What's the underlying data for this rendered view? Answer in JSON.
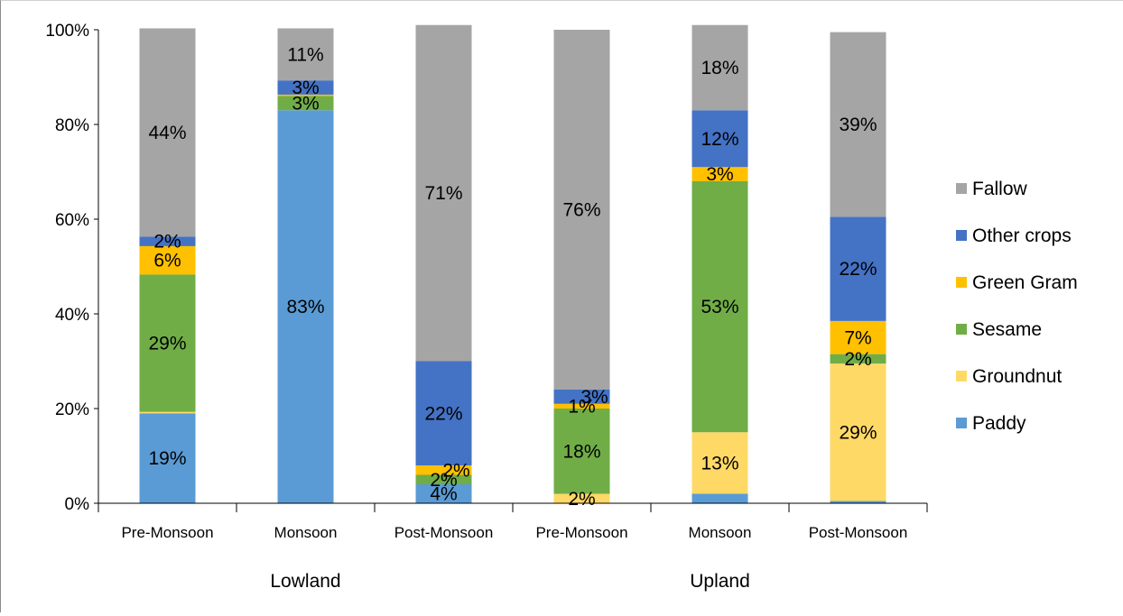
{
  "chart_data": {
    "type": "bar",
    "stacked": true,
    "percent": true,
    "categories": [
      "Pre-Monsoon",
      "Monsoon",
      "Post-Monsoon",
      "Pre-Monsoon",
      "Monsoon",
      "Post-Monsoon"
    ],
    "groups": [
      {
        "label": "Lowland",
        "categories": [
          0,
          1,
          2
        ]
      },
      {
        "label": "Upland",
        "categories": [
          3,
          4,
          5
        ]
      }
    ],
    "y_ticks": [
      "0%",
      "20%",
      "40%",
      "60%",
      "80%",
      "100%"
    ],
    "ylim": [
      0,
      100
    ],
    "legend_position": "right",
    "series": [
      {
        "name": "Paddy",
        "color": "#5b9bd5",
        "values": [
          19,
          83,
          4,
          0,
          2,
          0.5
        ],
        "labels": [
          "19%",
          "83%",
          "4%",
          "",
          "",
          ""
        ]
      },
      {
        "name": "Groundnut",
        "color": "#ffd966",
        "values": [
          0.3,
          0,
          0,
          2,
          13,
          29
        ],
        "labels": [
          "",
          "",
          "",
          "2%",
          "13%",
          "29%"
        ]
      },
      {
        "name": "Sesame",
        "color": "#70ad47",
        "values": [
          29,
          3,
          2,
          18,
          53,
          2
        ],
        "labels": [
          "29%",
          "3%",
          "2%",
          "18%",
          "53%",
          "2%"
        ]
      },
      {
        "name": "Green Gram",
        "color": "#ffc000",
        "values": [
          6,
          0.3,
          2,
          1,
          3,
          7
        ],
        "labels": [
          "6%",
          "",
          "2%",
          "1%",
          "3%",
          "7%"
        ]
      },
      {
        "name": "Other crops",
        "color": "#4472c4",
        "values": [
          2,
          3,
          22,
          3,
          12,
          22
        ],
        "labels": [
          "2%",
          "3%",
          "22%",
          "3%",
          "12%",
          "22%"
        ]
      },
      {
        "name": "Fallow",
        "color": "#a5a5a5",
        "values": [
          44,
          11,
          71,
          76,
          18,
          39
        ],
        "labels": [
          "44%",
          "11%",
          "71%",
          "76%",
          "18%",
          "39%"
        ]
      }
    ]
  }
}
